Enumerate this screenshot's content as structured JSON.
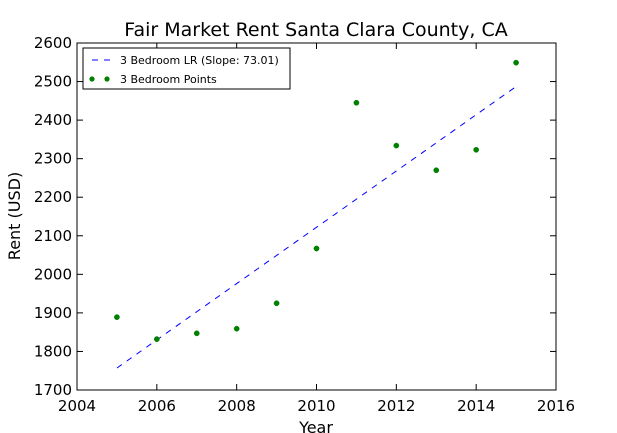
{
  "chart_data": {
    "type": "scatter",
    "title": "Fair Market Rent Santa Clara County, CA",
    "xlabel": "Year",
    "ylabel": "Rent (USD)",
    "xlim": [
      2004,
      2016
    ],
    "ylim": [
      1700,
      2600
    ],
    "xticks": [
      2004,
      2006,
      2008,
      2010,
      2012,
      2014,
      2016
    ],
    "yticks": [
      1700,
      1800,
      1900,
      2000,
      2100,
      2200,
      2300,
      2400,
      2500,
      2600
    ],
    "grid": false,
    "legend_position": "top-left",
    "series": [
      {
        "name": "3 Bedroom LR (Slope: 73.01)",
        "kind": "line",
        "style": "dashed",
        "color": "#0000ff",
        "x": [
          2005,
          2015
        ],
        "y": [
          1757,
          2487
        ]
      },
      {
        "name": "3 Bedroom Points",
        "kind": "scatter",
        "color": "#008000",
        "x": [
          2005,
          2006,
          2007,
          2008,
          2009,
          2010,
          2011,
          2012,
          2013,
          2014,
          2015
        ],
        "y": [
          1889,
          1832,
          1847,
          1859,
          1925,
          2067,
          2445,
          2334,
          2270,
          2323,
          2549
        ]
      }
    ]
  }
}
